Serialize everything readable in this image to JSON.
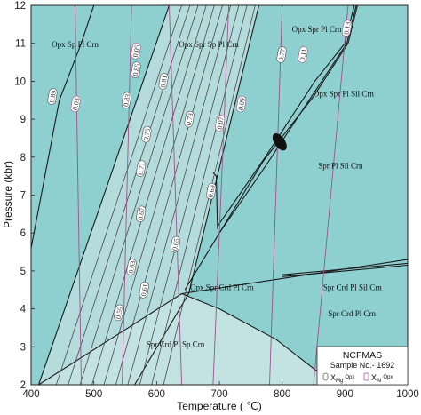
{
  "chart_data": {
    "type": "phase-diagram",
    "xlabel": "Temperature ( ℃)",
    "ylabel": "Pressure (kbr)",
    "xlim": [
      400,
      1000
    ],
    "ylim": [
      2,
      12
    ],
    "xticks": [
      "400",
      "500",
      "600",
      "700",
      "800",
      "900",
      "1000"
    ],
    "yticks": [
      "2",
      "3",
      "4",
      "5",
      "6",
      "7",
      "8",
      "9",
      "10",
      "11",
      "12"
    ],
    "colors": {
      "main_field": "#8ecfd0",
      "light_field": "#c3e2e2",
      "band_field": "#b4dcdc",
      "reaction_line": "#1a1a1a",
      "xmg_isopleth": "#4a4a4a",
      "xal_isopleth": "#a0508c"
    },
    "fields": [
      {
        "label": "Opx Sp Pl Crn",
        "x": 470,
        "y": 10.9
      },
      {
        "label": "Opx Spr Sp Pl Crn",
        "x": 683,
        "y": 10.9
      },
      {
        "label": "Opx Spr Pl Crn",
        "x": 855,
        "y": 11.3
      },
      {
        "label": "Opx Spr Pl Sil Crn",
        "x": 898,
        "y": 9.6
      },
      {
        "label": "Spr Pl Sil Crn",
        "x": 893,
        "y": 7.7
      },
      {
        "label": "Opx Spr Crd Pl Crn",
        "x": 704,
        "y": 4.5
      },
      {
        "label": "Spr Crd Pl Sil Crn",
        "x": 912,
        "y": 4.5
      },
      {
        "label": "Spr Crd Pl Crn",
        "x": 911,
        "y": 3.8
      },
      {
        "label": "Spr Crd Pl Sp Crn",
        "x": 630,
        "y": 3.0
      }
    ],
    "isopleth_labels_xmg": [
      {
        "label": "0.89",
        "x": 434,
        "y": 9.6
      },
      {
        "label": "0.85",
        "x": 567,
        "y": 10.3
      },
      {
        "label": "0.83",
        "x": 552,
        "y": 9.5
      },
      {
        "label": "0.81",
        "x": 611,
        "y": 10.0
      },
      {
        "label": "0.77",
        "x": 799,
        "y": 10.7
      },
      {
        "label": "0.75",
        "x": 584,
        "y": 8.6
      },
      {
        "label": "0.73",
        "x": 652,
        "y": 9.0
      },
      {
        "label": "0.71",
        "x": 575,
        "y": 7.7
      },
      {
        "label": "0.69",
        "x": 687,
        "y": 7.1
      },
      {
        "label": "0.67",
        "x": 575,
        "y": 6.5
      },
      {
        "label": "0.65",
        "x": 630,
        "y": 5.7
      },
      {
        "label": "0.63",
        "x": 560,
        "y": 5.1
      },
      {
        "label": "0.61",
        "x": 580,
        "y": 4.5
      },
      {
        "label": "0.59",
        "x": 540,
        "y": 3.9
      }
    ],
    "isopleth_labels_xal": [
      {
        "label": "0.03",
        "x": 471,
        "y": 9.4
      },
      {
        "label": "0.05",
        "x": 567,
        "y": 10.8
      },
      {
        "label": "0.07",
        "x": 701,
        "y": 8.9
      },
      {
        "label": "0.09",
        "x": 735,
        "y": 9.4
      },
      {
        "label": "0.11",
        "x": 833,
        "y": 10.7
      },
      {
        "label": "0.13",
        "x": 903,
        "y": 11.4
      }
    ],
    "legend": {
      "title": "NCFMAS",
      "sample": "Sample No.- 1692",
      "entries": [
        {
          "symbol": "X",
          "subscript": "Mg",
          "suffix": "Opx",
          "color": "#4a4a4a"
        },
        {
          "symbol": "X",
          "subscript": "Al",
          "suffix": "Opx",
          "color": "#a0508c"
        }
      ]
    }
  }
}
